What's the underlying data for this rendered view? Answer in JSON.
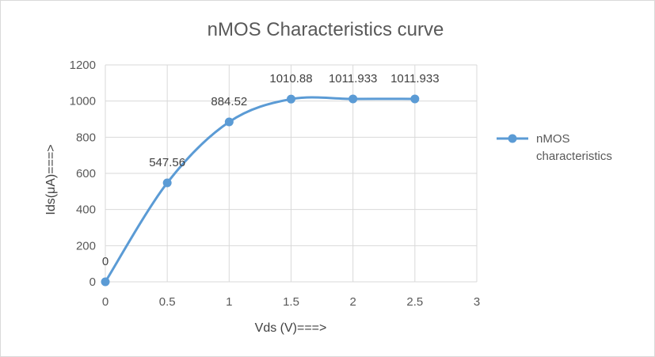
{
  "chart_data": {
    "type": "line",
    "title": "nMOS Characteristics curve",
    "xlabel": "Vds (V)===>",
    "ylabel": "Ids(μA)===>",
    "xlim": [
      0,
      3
    ],
    "ylim": [
      0,
      1200
    ],
    "x_ticks": [
      "0",
      "0.5",
      "1",
      "1.5",
      "2",
      "2.5",
      "3"
    ],
    "y_ticks": [
      "0",
      "200",
      "400",
      "600",
      "800",
      "1000",
      "1200"
    ],
    "grid": true,
    "smooth": true,
    "legend_position": "right",
    "series": [
      {
        "name": "nMOS characteristics",
        "color": "#5b9bd5",
        "x": [
          0,
          0.5,
          1,
          1.5,
          2,
          2.5
        ],
        "y": [
          0,
          547.56,
          884.52,
          1010.88,
          1011.933,
          1011.933
        ],
        "labels": [
          "0",
          "547.56",
          "884.52",
          "1010.88",
          "1011.933",
          "1011.933"
        ]
      }
    ]
  }
}
